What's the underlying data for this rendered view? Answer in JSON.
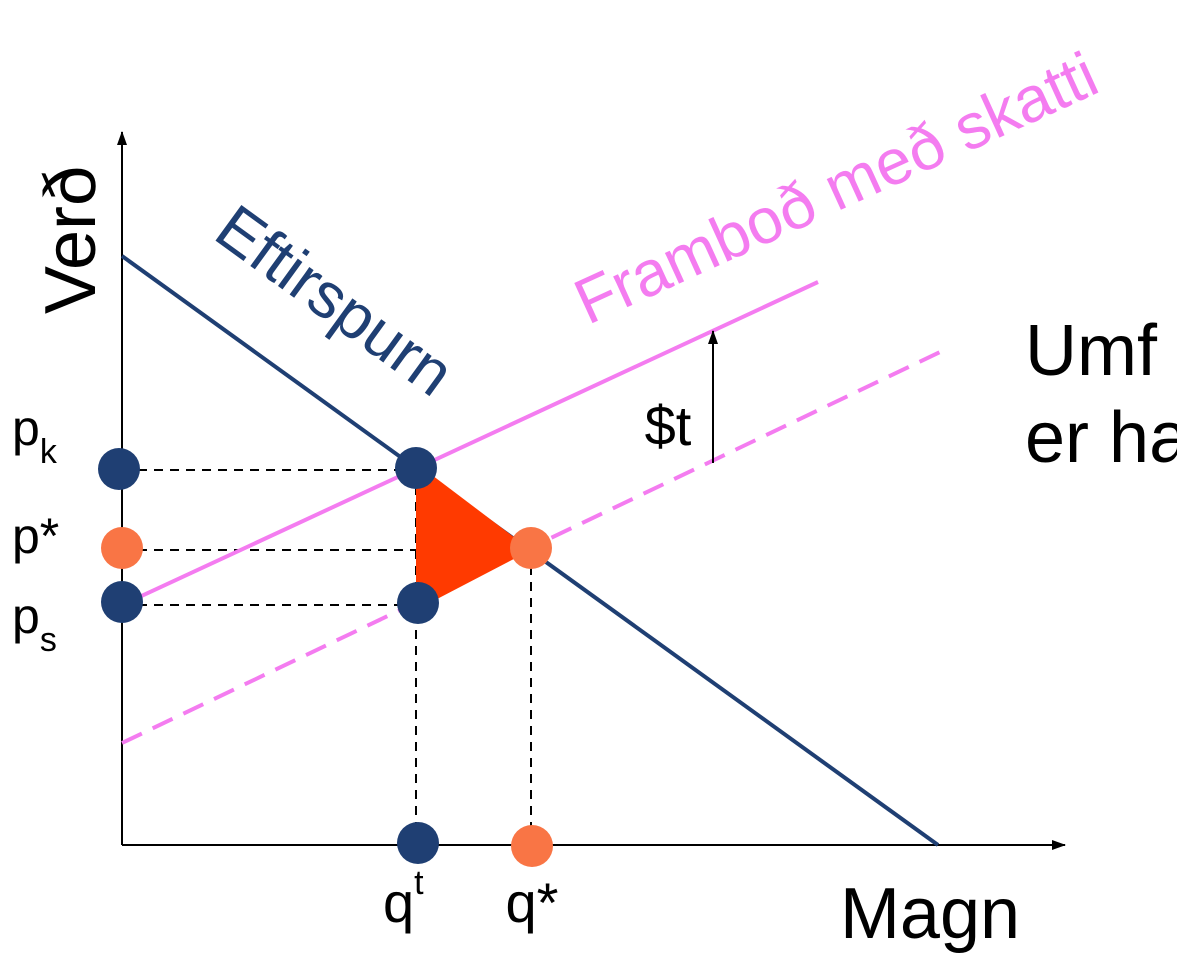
{
  "diagram": {
    "axes": {
      "y_label": "Verð",
      "x_label": "Magn"
    },
    "curves": {
      "demand_label": "Eftirspurn",
      "supply_with_tax_label": "Framboð með skatti",
      "tax_label": "$t"
    },
    "price_labels": {
      "pk_base": "p",
      "pk_sub": "k",
      "pstar": "p*",
      "ps_base": "p",
      "ps_sub": "s"
    },
    "quantity_labels": {
      "qt_base": "q",
      "qt_sup": "t",
      "qstar": "q*"
    },
    "side_text": {
      "line1": "Umf",
      "line2": "er ha"
    },
    "colors": {
      "demand": "#1f3f73",
      "supply_tax": "#f47cf0",
      "dot_blue": "#1f3f73",
      "dot_orange": "#f97545",
      "triangle": "#ff3a00",
      "axis": "#000000"
    }
  }
}
